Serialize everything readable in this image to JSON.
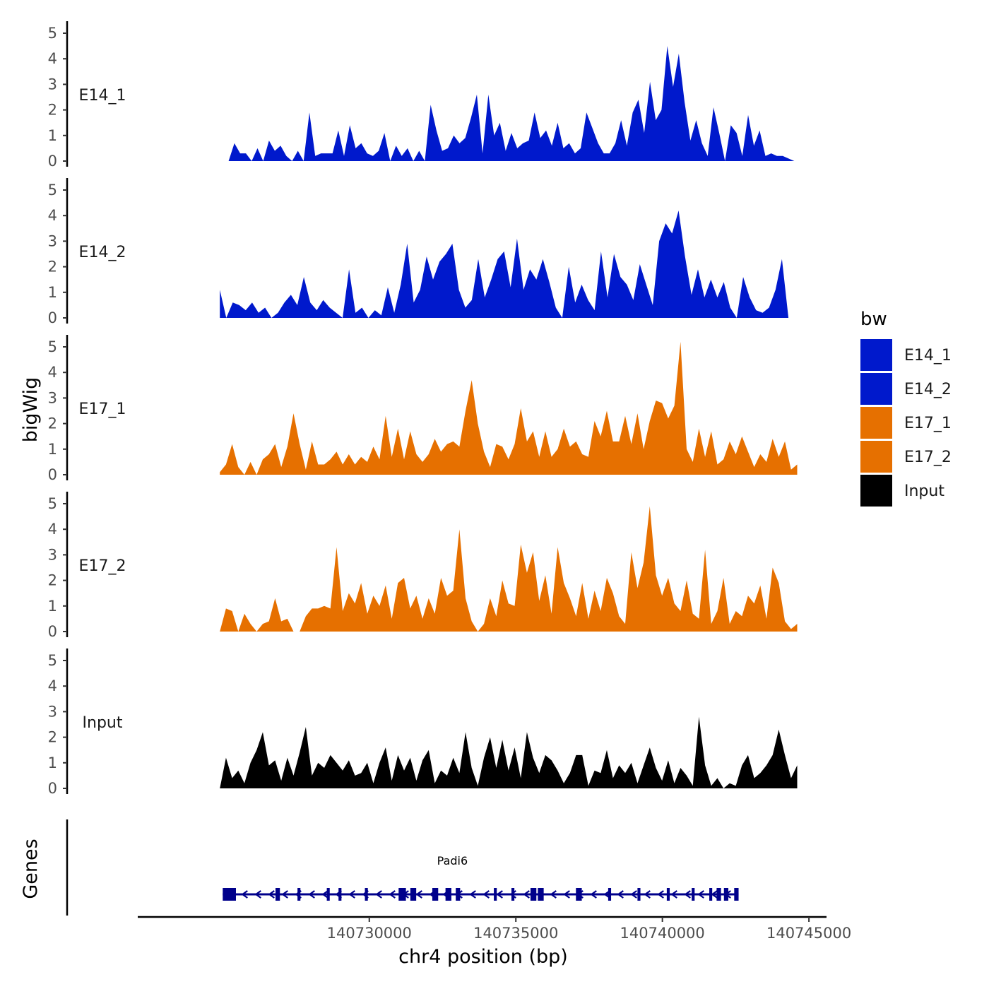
{
  "chart_data": {
    "type": "area",
    "title": "",
    "ylabel": "bigWig",
    "xlabel": "chr4 position (bp)",
    "genes_label": "Genes",
    "ylim": [
      0,
      5.3
    ],
    "yticks": [
      "0",
      "1",
      "2",
      "3",
      "4",
      "5"
    ],
    "xlim": [
      140722100,
      140745600
    ],
    "xticks": [
      {
        "value": 140730000,
        "label": "140730000"
      },
      {
        "value": 140735000,
        "label": "140735000"
      },
      {
        "value": 140740000,
        "label": "140740000"
      },
      {
        "value": 140745000,
        "label": "140745000"
      }
    ],
    "legend": {
      "title": "bw",
      "entries": [
        {
          "name": "E14_1",
          "color": "#0019cc"
        },
        {
          "name": "E14_2",
          "color": "#0019cc"
        },
        {
          "name": "E17_1",
          "color": "#e67000"
        },
        {
          "name": "E17_2",
          "color": "#e67000"
        },
        {
          "name": "Input",
          "color": "#000000"
        }
      ]
    },
    "series": [
      {
        "name": "E14_1",
        "color": "#0019cc",
        "x_start": 140725200,
        "x_end": 140744500,
        "values": [
          0,
          0.7,
          0.3,
          0.3,
          0,
          0.5,
          0,
          0.8,
          0.4,
          0.6,
          0.2,
          0,
          0.4,
          0,
          1.9,
          0.2,
          0.3,
          0.3,
          0.3,
          1.2,
          0.2,
          1.4,
          0.5,
          0.7,
          0.3,
          0.2,
          0.4,
          1.1,
          0,
          0.6,
          0.2,
          0.5,
          0,
          0.4,
          0,
          2.2,
          1.2,
          0.4,
          0.5,
          1.0,
          0.7,
          0.9,
          1.7,
          2.6,
          0.3,
          2.6,
          1.0,
          1.5,
          0.4,
          1.1,
          0.5,
          0.7,
          0.8,
          1.9,
          0.9,
          1.2,
          0.6,
          1.5,
          0.5,
          0.7,
          0.3,
          0.5,
          1.9,
          1.3,
          0.7,
          0.3,
          0.3,
          0.7,
          1.6,
          0.6,
          1.9,
          2.4,
          1.1,
          3.1,
          1.6,
          2.0,
          4.5,
          2.9,
          4.2,
          2.3,
          0.8,
          1.6,
          0.7,
          0.2,
          2.1,
          1.1,
          0,
          1.4,
          1.1,
          0.2,
          1.8,
          0.6,
          1.2,
          0.2,
          0.3,
          0.2,
          0.2,
          0.1,
          0
        ]
      },
      {
        "name": "E14_2",
        "color": "#0019cc",
        "x_start": 140724900,
        "x_end": 140744300,
        "values": [
          1.1,
          0,
          0.6,
          0.5,
          0.3,
          0.6,
          0.2,
          0.4,
          0,
          0.2,
          0.6,
          0.9,
          0.5,
          1.6,
          0.6,
          0.3,
          0.7,
          0.4,
          0.2,
          0,
          1.9,
          0.2,
          0.4,
          0,
          0.3,
          0.1,
          1.2,
          0.2,
          1.3,
          2.9,
          0.6,
          1.1,
          2.4,
          1.5,
          2.2,
          2.5,
          2.9,
          1.1,
          0.4,
          0.7,
          2.3,
          0.8,
          1.5,
          2.3,
          2.6,
          1.2,
          3.1,
          1.1,
          1.9,
          1.5,
          2.3,
          1.4,
          0.4,
          0,
          2.0,
          0.6,
          1.3,
          0.7,
          0.3,
          2.6,
          0.8,
          2.5,
          1.6,
          1.3,
          0.7,
          2.1,
          1.3,
          0.5,
          3.0,
          3.7,
          3.3,
          4.2,
          2.4,
          0.9,
          1.9,
          0.8,
          1.5,
          0.8,
          1.4,
          0.4,
          0,
          1.6,
          0.8,
          0.3,
          0.2,
          0.4,
          1.1,
          2.3,
          0
        ]
      },
      {
        "name": "E17_1",
        "color": "#e67000",
        "x_start": 140724900,
        "x_end": 140744600,
        "values": [
          0.1,
          0.4,
          1.2,
          0.3,
          0,
          0.5,
          0,
          0.6,
          0.8,
          1.2,
          0.3,
          1.1,
          2.4,
          1.2,
          0.2,
          1.3,
          0.4,
          0.4,
          0.6,
          0.9,
          0.4,
          0.8,
          0.4,
          0.7,
          0.5,
          1.1,
          0.6,
          2.3,
          0.7,
          1.8,
          0.6,
          1.7,
          0.8,
          0.5,
          0.8,
          1.4,
          0.9,
          1.2,
          1.3,
          1.1,
          2.5,
          3.7,
          2.0,
          0.9,
          0.3,
          1.2,
          1.1,
          0.6,
          1.2,
          2.6,
          1.3,
          1.7,
          0.7,
          1.7,
          0.7,
          1.0,
          1.8,
          1.1,
          1.3,
          0.8,
          0.7,
          2.1,
          1.5,
          2.5,
          1.3,
          1.3,
          2.3,
          1.2,
          2.4,
          1.0,
          2.1,
          2.9,
          2.8,
          2.2,
          2.7,
          5.2,
          1.0,
          0.5,
          1.8,
          0.7,
          1.7,
          0.4,
          0.6,
          1.3,
          0.8,
          1.5,
          0.9,
          0.3,
          0.8,
          0.5,
          1.4,
          0.7,
          1.3,
          0.2,
          0.4
        ]
      },
      {
        "name": "E17_2",
        "color": "#e67000",
        "x_start": 140724900,
        "x_end": 140744600,
        "values": [
          0,
          0.9,
          0.8,
          0,
          0.7,
          0.3,
          0,
          0.3,
          0.4,
          1.3,
          0.4,
          0.5,
          0,
          0,
          0.6,
          0.9,
          0.9,
          1.0,
          0.9,
          3.3,
          0.8,
          1.5,
          1.1,
          1.9,
          0.7,
          1.4,
          1.0,
          1.8,
          0.5,
          1.9,
          2.1,
          0.9,
          1.4,
          0.5,
          1.3,
          0.7,
          2.1,
          1.4,
          1.6,
          4.0,
          1.3,
          0.4,
          0,
          0.3,
          1.3,
          0.6,
          2.0,
          1.1,
          1.0,
          3.4,
          2.3,
          3.1,
          1.2,
          2.2,
          0.7,
          3.3,
          1.9,
          1.3,
          0.6,
          1.9,
          0.5,
          1.6,
          0.8,
          2.1,
          1.5,
          0.6,
          0.3,
          3.1,
          1.7,
          2.7,
          4.9,
          2.2,
          1.4,
          2.1,
          1.1,
          0.8,
          2.0,
          0.7,
          0.5,
          3.2,
          0.3,
          0.8,
          2.1,
          0.3,
          0.8,
          0.6,
          1.4,
          1.1,
          1.8,
          0.5,
          2.5,
          1.9,
          0.4,
          0.1,
          0.3
        ]
      },
      {
        "name": "Input",
        "color": "#000000",
        "x_start": 140724900,
        "x_end": 140744600,
        "values": [
          0,
          1.2,
          0.4,
          0.7,
          0.2,
          1.0,
          1.5,
          2.2,
          0.9,
          1.1,
          0.3,
          1.2,
          0.5,
          1.4,
          2.4,
          0.5,
          1.0,
          0.8,
          1.3,
          1.0,
          0.7,
          1.1,
          0.5,
          0.6,
          1.0,
          0.2,
          1.0,
          1.6,
          0.3,
          1.3,
          0.7,
          1.2,
          0.3,
          1.1,
          1.5,
          0.2,
          0.7,
          0.5,
          1.2,
          0.6,
          2.2,
          0.8,
          0.1,
          1.2,
          2.0,
          0.8,
          1.9,
          0.7,
          1.6,
          0.4,
          2.2,
          1.2,
          0.6,
          1.3,
          1.1,
          0.7,
          0.2,
          0.6,
          1.3,
          1.3,
          0.1,
          0.7,
          0.6,
          1.5,
          0.4,
          0.9,
          0.6,
          1.0,
          0.2,
          0.9,
          1.6,
          0.8,
          0.3,
          1.1,
          0.2,
          0.8,
          0.5,
          0.1,
          2.8,
          0.9,
          0.1,
          0.4,
          0,
          0.2,
          0.1,
          0.9,
          1.3,
          0.4,
          0.6,
          0.9,
          1.3,
          2.3,
          1.3,
          0.4,
          0.9
        ]
      }
    ],
    "gene": {
      "name": "Padi6",
      "color": "#00008b",
      "strand": "-",
      "start": 140725000,
      "end": 140742600,
      "exons": [
        [
          140725000,
          140725450
        ],
        [
          140726800,
          140726950
        ],
        [
          140727550,
          140727650
        ],
        [
          140728550,
          140728650
        ],
        [
          140728950,
          140729050
        ],
        [
          140729850,
          140729950
        ],
        [
          140731000,
          140731250
        ],
        [
          140731400,
          140731600
        ],
        [
          140732150,
          140732350
        ],
        [
          140732600,
          140732800
        ],
        [
          140732950,
          140733100
        ],
        [
          140734250,
          140734350
        ],
        [
          140734850,
          140734950
        ],
        [
          140735500,
          140735700
        ],
        [
          140735750,
          140735950
        ],
        [
          140737050,
          140737250
        ],
        [
          140738150,
          140738250
        ],
        [
          140739150,
          140739250
        ],
        [
          140740150,
          140740250
        ],
        [
          140741000,
          140741100
        ],
        [
          140741600,
          140741700
        ],
        [
          140741850,
          140742000
        ],
        [
          140742100,
          140742250
        ],
        [
          140742450,
          140742600
        ]
      ]
    }
  }
}
